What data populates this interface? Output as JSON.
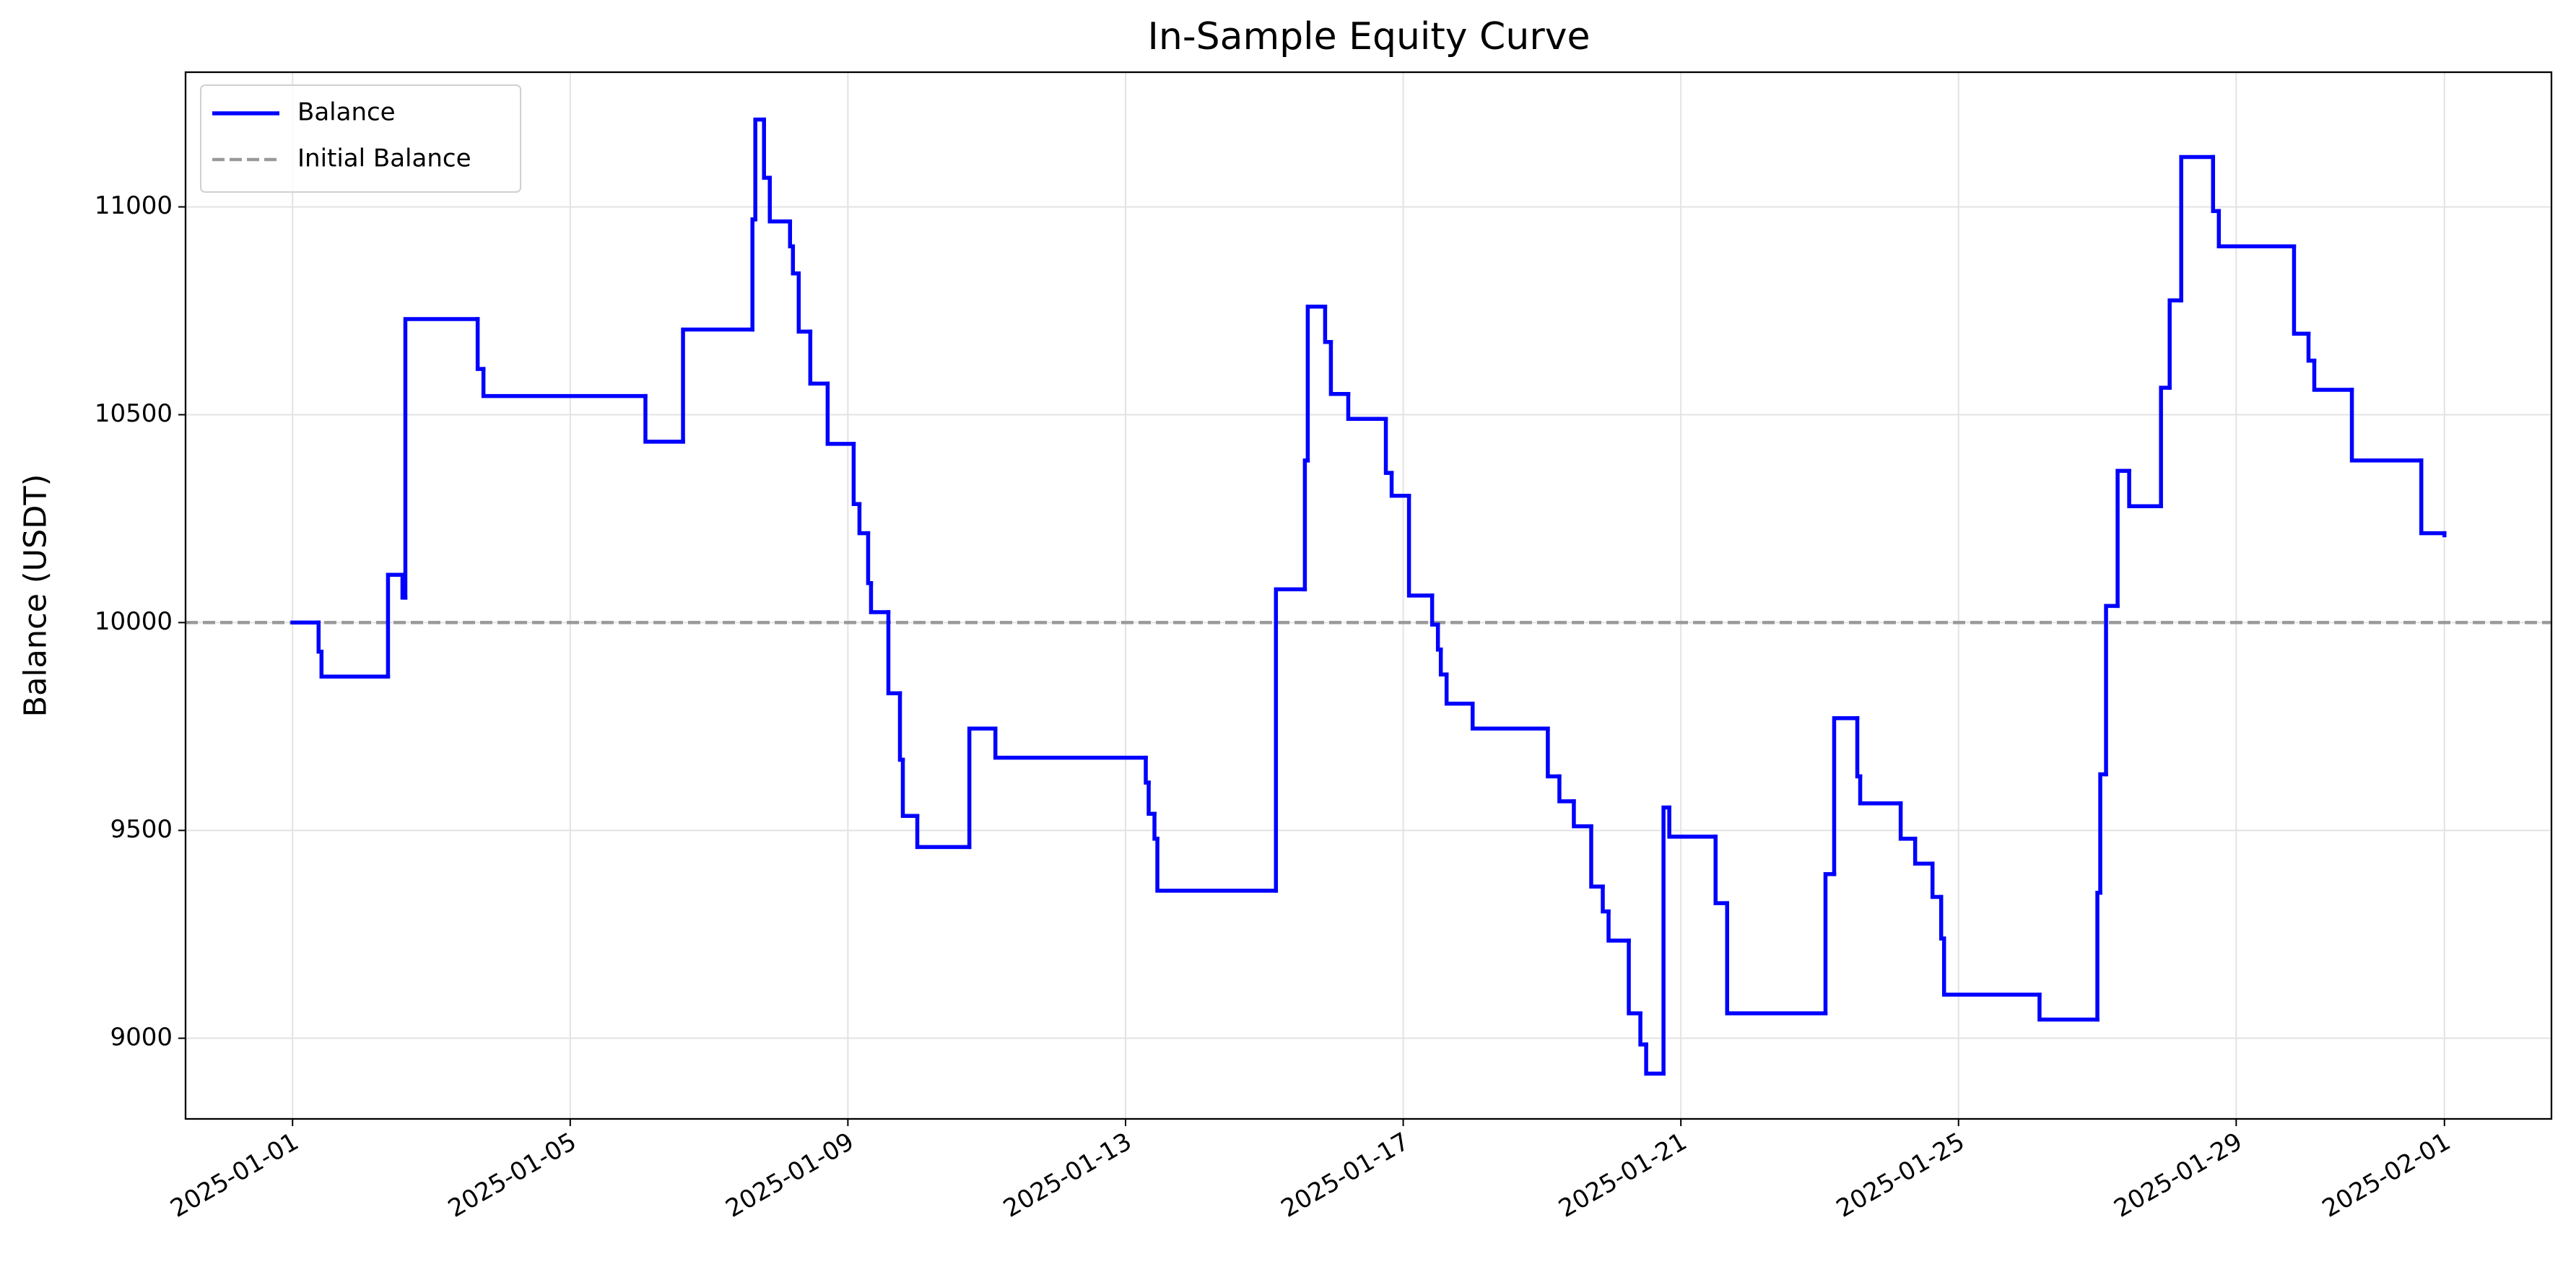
{
  "chart_data": {
    "type": "step-line",
    "step": "post",
    "title": "In-Sample Equity Curve",
    "ylabel": "Balance (USDT)",
    "xlim": [
      "2024-12-30 11:00",
      "2025-02-02 13:00"
    ],
    "xticks": [
      "2025-01-01",
      "2025-01-05",
      "2025-01-09",
      "2025-01-13",
      "2025-01-17",
      "2025-01-21",
      "2025-01-25",
      "2025-01-29",
      "2025-02-01"
    ],
    "ylim": [
      8806,
      11324
    ],
    "yticks": [
      9000,
      9500,
      10000,
      10500,
      11000
    ],
    "grid": true,
    "legend": "upper left",
    "series": [
      {
        "name": "Balance",
        "color": "#0000ff",
        "x": [
          "2025-01-01 00:00",
          "2025-01-01 09:00",
          "2025-01-01 10:00",
          "2025-01-02 09:00",
          "2025-01-02 14:00",
          "2025-01-02 15:00",
          "2025-01-03 16:00",
          "2025-01-03 18:00",
          "2025-01-06 02:00",
          "2025-01-06 15:00",
          "2025-01-07 15:00",
          "2025-01-07 16:00",
          "2025-01-07 19:00",
          "2025-01-07 21:00",
          "2025-01-08 04:00",
          "2025-01-08 05:00",
          "2025-01-08 07:00",
          "2025-01-08 11:00",
          "2025-01-08 17:00",
          "2025-01-09 02:00",
          "2025-01-09 04:00",
          "2025-01-09 07:00",
          "2025-01-09 08:00",
          "2025-01-09 14:00",
          "2025-01-09 18:00",
          "2025-01-09 19:00",
          "2025-01-10 00:00",
          "2025-01-10 18:00",
          "2025-01-11 03:00",
          "2025-01-13 07:00",
          "2025-01-13 08:00",
          "2025-01-13 10:00",
          "2025-01-13 11:00",
          "2025-01-15 04:00",
          "2025-01-15 14:00",
          "2025-01-15 15:00",
          "2025-01-15 21:00",
          "2025-01-15 23:00",
          "2025-01-16 05:00",
          "2025-01-16 18:00",
          "2025-01-16 20:00",
          "2025-01-17 02:00",
          "2025-01-17 10:00",
          "2025-01-17 12:00",
          "2025-01-17 13:00",
          "2025-01-17 15:00",
          "2025-01-18 00:00",
          "2025-01-19 02:00",
          "2025-01-19 06:00",
          "2025-01-19 11:00",
          "2025-01-19 17:00",
          "2025-01-19 21:00",
          "2025-01-19 23:00",
          "2025-01-20 06:00",
          "2025-01-20 10:00",
          "2025-01-20 12:00",
          "2025-01-20 18:00",
          "2025-01-20 20:00",
          "2025-01-21 12:00",
          "2025-01-21 16:00",
          "2025-01-23 02:00",
          "2025-01-23 05:00",
          "2025-01-23 13:00",
          "2025-01-23 14:00",
          "2025-01-24 04:00",
          "2025-01-24 09:00",
          "2025-01-24 15:00",
          "2025-01-24 18:00",
          "2025-01-24 19:00",
          "2025-01-26 04:00",
          "2025-01-27 00:00",
          "2025-01-27 01:00",
          "2025-01-27 03:00",
          "2025-01-27 07:00",
          "2025-01-27 11:00",
          "2025-01-27 22:00",
          "2025-01-28 01:00",
          "2025-01-28 05:00",
          "2025-01-28 16:00",
          "2025-01-28 18:00",
          "2025-01-29 20:00",
          "2025-01-30 01:00",
          "2025-01-30 03:00",
          "2025-01-30 16:00",
          "2025-01-31 16:00",
          "2025-02-01 00:00"
        ],
        "values": [
          10000,
          9930,
          9870,
          10115,
          10060,
          10730,
          10610,
          10545,
          10435,
          10705,
          10970,
          11210,
          11070,
          10965,
          10905,
          10840,
          10700,
          10575,
          10430,
          10285,
          10215,
          10095,
          10025,
          9830,
          9670,
          9535,
          9460,
          9745,
          9675,
          9615,
          9540,
          9480,
          9355,
          10080,
          10390,
          10760,
          10675,
          10550,
          10490,
          10360,
          10305,
          10065,
          9995,
          9935,
          9875,
          9805,
          9745,
          9630,
          9570,
          9510,
          9365,
          9305,
          9235,
          9060,
          8985,
          8915,
          9555,
          9485,
          9325,
          9060,
          9395,
          9770,
          9630,
          9565,
          9480,
          9420,
          9340,
          9240,
          9105,
          9045,
          9350,
          9635,
          10040,
          10365,
          10280,
          10565,
          10775,
          11120,
          10990,
          10905,
          10695,
          10630,
          10560,
          10390,
          10215,
          10210
        ]
      }
    ],
    "hlines": [
      {
        "name": "Initial Balance",
        "value": 10000,
        "color": "#999999",
        "style": "dashed"
      }
    ]
  }
}
